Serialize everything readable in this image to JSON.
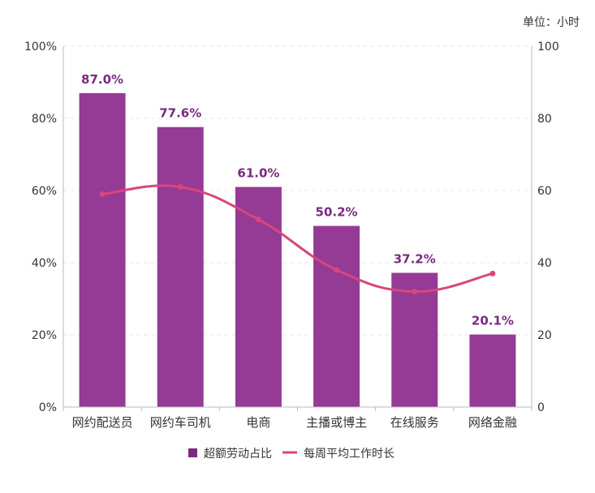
{
  "chart_data": {
    "type": "bar",
    "categories": [
      "网约配送员",
      "网约车司机",
      "电商",
      "主播或博主",
      "在线服务",
      "网络金融"
    ],
    "series": [
      {
        "name": "超额劳动占比",
        "type": "bar",
        "axis": "left",
        "values": [
          87.0,
          77.6,
          61.0,
          50.2,
          37.2,
          20.1
        ],
        "labels": [
          "87.0%",
          "77.6%",
          "61.0%",
          "50.2%",
          "37.2%",
          "20.1%"
        ],
        "color": "#953a95"
      },
      {
        "name": "每周平均工作时长",
        "type": "line",
        "axis": "right",
        "values": [
          59,
          61,
          52,
          38,
          32,
          37
        ],
        "color": "#d9467a"
      }
    ],
    "y_left": {
      "ylim": [
        0,
        100
      ],
      "ticks": [
        "0%",
        "20%",
        "40%",
        "60%",
        "80%",
        "100%"
      ]
    },
    "y_right": {
      "ylim": [
        0,
        100
      ],
      "ticks": [
        "0",
        "20",
        "40",
        "60",
        "80",
        "100"
      ],
      "unit_label": "单位：小时"
    },
    "grid": true,
    "legend": "bottom"
  }
}
